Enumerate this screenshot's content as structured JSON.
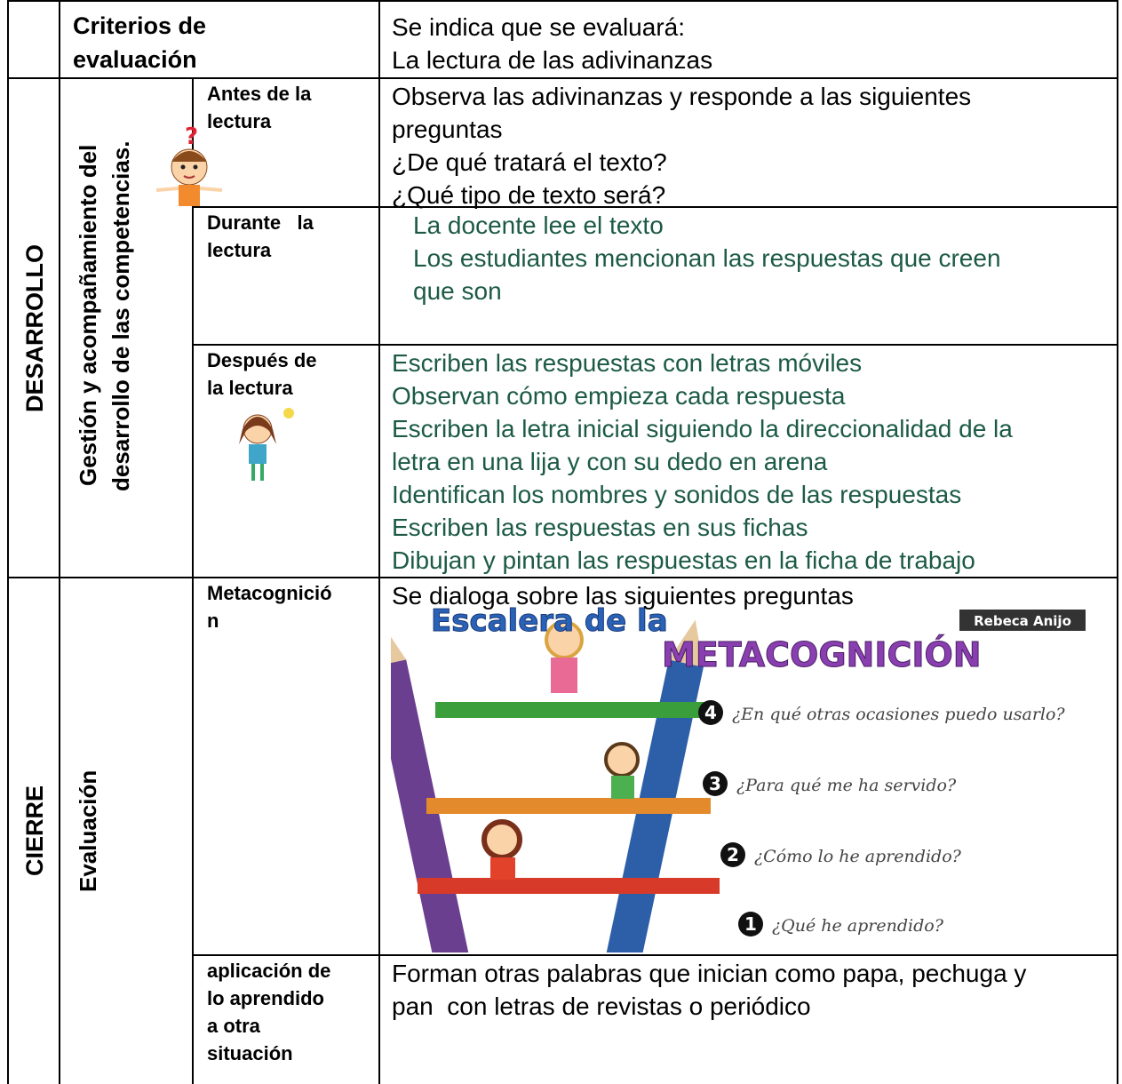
{
  "header": {
    "label": [
      "Criterios de",
      "evaluación"
    ],
    "content": [
      "Se indica que se evaluará:",
      "La lectura de las adivinanzas"
    ]
  },
  "sections": [
    {
      "phase": "DESARROLLO",
      "subtitle": [
        "Gestión y acompañamiento del",
        "desarrollo de las competencias."
      ],
      "rows": [
        {
          "label": [
            "Antes de la",
            "lectura"
          ],
          "content": [
            "Observa las adivinanzas y responde a las siguientes",
            "preguntas",
            "¿De qué tratará el texto?",
            "¿Qué tipo de texto será?"
          ]
        },
        {
          "label": [
            "Durante   la",
            "lectura"
          ],
          "content": [
            "La docente lee el texto",
            "Los estudiantes mencionan las respuestas que creen",
            "que son"
          ]
        },
        {
          "label": [
            "Después de",
            "la lectura"
          ],
          "content": [
            "Escriben las respuestas con letras móviles",
            "Observan cómo empieza cada respuesta",
            "Escriben la letra inicial siguiendo la direccionalidad de la",
            "letra en una lija y con su dedo en arena",
            "Identifican los nombres y sonidos de las respuestas",
            "Escriben las respuestas en sus fichas",
            "Dibujan y pintan las respuestas en la ficha de trabajo"
          ]
        }
      ]
    },
    {
      "phase": "CIERRE",
      "subtitle": [
        "Evaluación"
      ],
      "rows": [
        {
          "label": [
            "Metacognició",
            "n"
          ],
          "content": [
            "Se dialoga sobre las siguientes preguntas"
          ]
        },
        {
          "label": [
            "aplicación de",
            "lo aprendido",
            "a otra",
            "situación"
          ],
          "content": [
            "Forman otras palabras que inician como papa, pechuga y",
            "pan  con letras de revistas o periódico"
          ]
        }
      ]
    }
  ],
  "metacognition_image": {
    "title_top": "Escalera de la",
    "title_main": "METACOGNICIÓN",
    "author": "Rebeca Anijo",
    "steps": [
      {
        "number": "4",
        "text": "¿En qué otras ocasiones puedo usarlo?"
      },
      {
        "number": "3",
        "text": "¿Para qué me ha servido?"
      },
      {
        "number": "2",
        "text": "¿Cómo lo he aprendido?"
      },
      {
        "number": "1",
        "text": "¿Qué he aprendido?"
      }
    ]
  }
}
